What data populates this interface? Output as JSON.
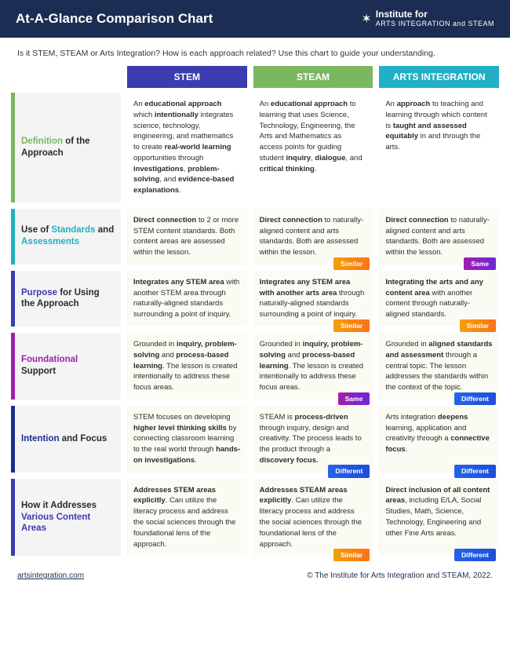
{
  "header": {
    "title": "At-A-Glance Comparison Chart",
    "logo_l1": "Institute for",
    "logo_l2": "ARTS INTEGRATION and STEAM"
  },
  "intro": "Is it STEM, STEAM or Arts Integration? How is each approach related? Use this chart to guide your understanding.",
  "columns": [
    {
      "label": "STEM",
      "color": "#3c3bb0"
    },
    {
      "label": "STEAM",
      "color": "#7bb661"
    },
    {
      "label": "ARTS INTEGRATION",
      "color": "#22b0c9"
    }
  ],
  "badges": {
    "similar": {
      "text": "Similar",
      "bg": "linear-gradient(90deg,#f59e0b,#f97316)"
    },
    "same": {
      "text": "Same",
      "bg": "linear-gradient(90deg,#a21caf,#6d28d9)"
    },
    "different": {
      "text": "Different",
      "bg": "linear-gradient(90deg,#2563eb,#1d4ed8)"
    }
  },
  "rows": [
    {
      "label_html": "<span style='color:#7bb661'>Definition</span> of the Approach",
      "accent": "#7bb661",
      "pale": false,
      "cells": [
        "An <b>educational approach</b> which <b>intentionally</b> integrates science, technology, engineering, and mathematics to create <b>real-world learning</b> opportunities through <b>investigations</b>, <b>problem-solving</b>, and <b>evidence-based explanations</b>.",
        "An <b>educational approach</b> to learning that uses Science, Technology, Engineering, the Arts and Mathematics as access points for guiding student <b>inquiry</b>, <b>dialogue</b>, and <b>critical thinking</b>.",
        "An <b>approach</b> to teaching and learning through which content is <b>taught and assessed equitably</b> in and through the arts."
      ],
      "badges": [
        null,
        null,
        null
      ]
    },
    {
      "label_html": "Use of <span style='color:#1fb1c1'>Standards</span> and <span style='color:#1fb1c1'>Assessments</span>",
      "accent": "#1fb1c1",
      "pale": true,
      "cells": [
        "<b>Direct connection</b> to 2 or more STEM content standards. Both content areas are assessed within the lesson.",
        "<b>Direct connection</b> to naturally-aligned content and arts standards. Both are assessed within the lesson.",
        "<b>Direct connection</b> to naturally-aligned content and arts standards. Both are assessed within the lesson."
      ],
      "badges": [
        null,
        "similar",
        "same"
      ]
    },
    {
      "label_html": "<span style='color:#3c3bb0'>Purpose</span> for Using the Approach",
      "accent": "#3c3bb0",
      "pale": true,
      "cells": [
        "<b>Integrates any STEM area</b> with another STEM area through naturally-aligned standards surrounding a point of inquiry.",
        "<b>Integrates any STEM area with another arts area</b> through naturally-aligned standards surrounding a point of inquiry.",
        "<b>Integrating the arts and any content area</b> with another content through naturally-aligned standards."
      ],
      "badges": [
        null,
        "similar",
        "similar"
      ]
    },
    {
      "label_html": "<span style='color:#a21caf'>Foundational</span> Support",
      "accent": "#a21caf",
      "pale": true,
      "cells": [
        "Grounded in <b>inquiry, problem-solving</b> and <b>process-based learning</b>. The lesson is created intentionally to address these focus areas.",
        "Grounded in <b>inquiry, problem-solving</b> and <b>process-based learning</b>. The lesson is created intentionally to address these focus areas.",
        "Grounded in <b>aligned standards and assessment</b> through a central topic. The lesson addresses the standards within the context of the topic."
      ],
      "badges": [
        null,
        "same",
        "different"
      ]
    },
    {
      "label_html": "<span style='color:#1b2d8f'>Intention</span> and Focus",
      "accent": "#1b2d8f",
      "pale": true,
      "cells": [
        "STEM focuses on developing <b>higher level thinking skills</b> by connecting classroom learning to the real world through <b>hands-on investigations</b>.",
        "STEAM is <b>process-driven</b> through inquiry, design and creativity. The process leads to the product through a <b>discovery focus.</b>",
        "Arts integration <b>deepens</b> learning, application and creativity through a <b>connective focus</b>."
      ],
      "badges": [
        null,
        "different",
        "different"
      ]
    },
    {
      "label_html": "How it Addresses <span style='color:#3c3bb0'>Various Content Areas</span>",
      "accent": "#3c3bb0",
      "pale": true,
      "cells": [
        "<b>Addresses STEM areas explicitly</b>. Can utilize the literacy process and address the social sciences through the foundational lens of the approach.",
        "<b>Addresses STEAM areas explicitly</b>. Can utilize the literacy process and address the social sciences through the foundational lens of the approach.",
        "<b>Direct inclusion of all content areas</b>, including E/LA, Social Studies, Math, Science, Technology, Engineering and other Fine Arts areas."
      ],
      "badges": [
        null,
        "similar",
        "different"
      ]
    }
  ],
  "footer": {
    "link": "artsintegration.com",
    "copyright": "© The Institute for Arts Integration and STEAM, 2022."
  }
}
